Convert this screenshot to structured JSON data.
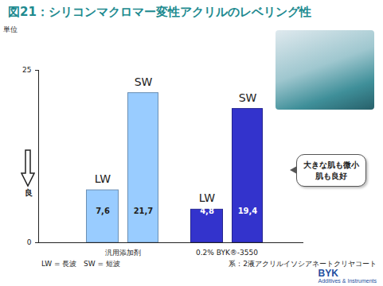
{
  "chart_data": {
    "type": "bar",
    "title": "図21：シリコンマクロマー変性アクリルのレベリング性",
    "categories": [
      "汎用添加剤",
      "0.2% BYK®-3550"
    ],
    "series": [
      {
        "name": "LW",
        "colors": [
          "#99ccff",
          "#3333cc"
        ],
        "values": [
          7.6,
          4.8
        ],
        "value_labels": [
          "7,6",
          "4,8"
        ]
      },
      {
        "name": "SW",
        "colors": [
          "#99ccff",
          "#3333cc"
        ],
        "values": [
          21.7,
          19.4
        ],
        "value_labels": [
          "21,7",
          "19,4"
        ]
      }
    ],
    "y_label": "単位",
    "ylim": [
      0,
      25
    ],
    "yticks": [
      0,
      25
    ],
    "data_labels": true,
    "annotations": [
      "良",
      "大きな肌も微小肌も良好"
    ],
    "notes": [
      "LW = 長波   SW = 短波",
      "系：2液アクリルイソシアネートクリヤコート"
    ],
    "logo": [
      "BYK",
      "Additives & Instruments"
    ]
  }
}
